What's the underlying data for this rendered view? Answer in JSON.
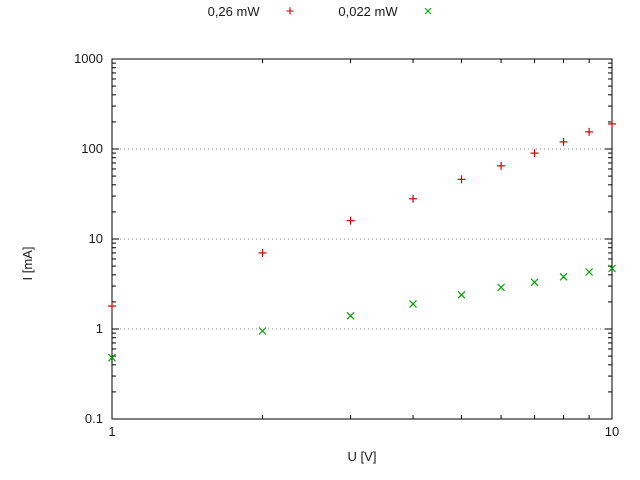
{
  "chart_data": {
    "type": "scatter",
    "x_label": "U [V]",
    "y_label": "I [mA]",
    "x_scale": "log",
    "y_scale": "log",
    "x_range": [
      1,
      10
    ],
    "y_range": [
      0.1,
      1000
    ],
    "grid": "horizontal-dotted",
    "legend_position": "top-center-outside",
    "x_ticks": [
      {
        "value": 1,
        "label": "1"
      },
      {
        "value": 10,
        "label": "10"
      }
    ],
    "y_ticks": [
      {
        "value": 0.1,
        "label": "0.1"
      },
      {
        "value": 1,
        "label": "1"
      },
      {
        "value": 10,
        "label": "10"
      },
      {
        "value": 100,
        "label": "100"
      },
      {
        "value": 1000,
        "label": "1000"
      }
    ],
    "grid_y": [
      1,
      10,
      100
    ],
    "series": [
      {
        "name": "0,26 mW",
        "marker": "plus",
        "color": "#cc0000",
        "points": [
          [
            1,
            1.8
          ],
          [
            2,
            7
          ],
          [
            3,
            16
          ],
          [
            4,
            28
          ],
          [
            5,
            46
          ],
          [
            6,
            65
          ],
          [
            7,
            90
          ],
          [
            8,
            120
          ],
          [
            9,
            155
          ],
          [
            10,
            190
          ]
        ]
      },
      {
        "name": "0,022 mW",
        "marker": "x",
        "color": "#00a000",
        "points": [
          [
            1,
            0.48
          ],
          [
            2,
            0.95
          ],
          [
            3,
            1.4
          ],
          [
            4,
            1.9
          ],
          [
            5,
            2.4
          ],
          [
            6,
            2.9
          ],
          [
            7,
            3.3
          ],
          [
            8,
            3.8
          ],
          [
            9,
            4.3
          ],
          [
            10,
            4.7
          ]
        ]
      }
    ]
  }
}
